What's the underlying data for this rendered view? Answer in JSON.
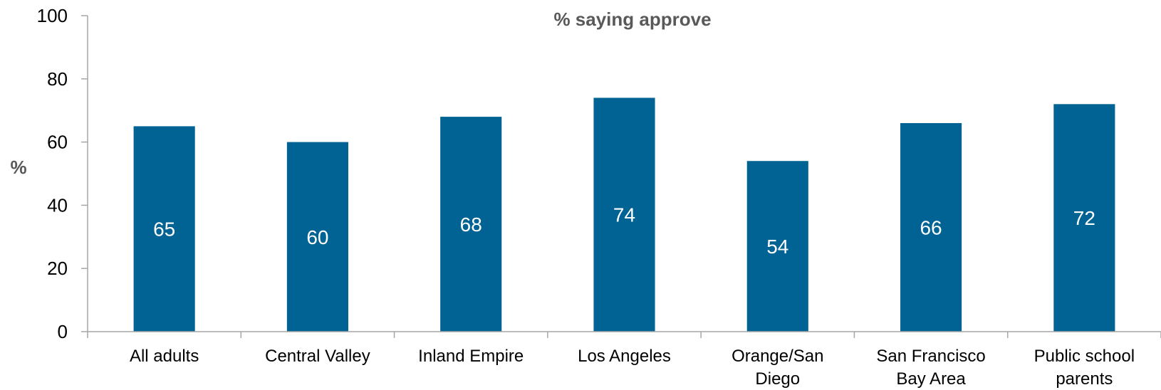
{
  "chart_data": {
    "type": "bar",
    "title": "% saying approve",
    "xlabel": "",
    "ylabel": "%",
    "categories": [
      [
        "All adults"
      ],
      [
        "Central Valley"
      ],
      [
        "Inland Empire"
      ],
      [
        "Los Angeles"
      ],
      [
        "Orange/San",
        "Diego"
      ],
      [
        "San Francisco",
        "Bay Area"
      ],
      [
        "Public school",
        "parents"
      ]
    ],
    "values": [
      65,
      60,
      68,
      74,
      54,
      66,
      72
    ],
    "data_labels": [
      "65",
      "60",
      "68",
      "74",
      "54",
      "66",
      "72"
    ],
    "y_ticks": [
      "0",
      "20",
      "40",
      "60",
      "80",
      "100"
    ],
    "ylim": [
      0,
      100
    ],
    "grid": false,
    "legend": "none",
    "colors": {
      "bar": "#006394",
      "axis": "#a6a6a6"
    }
  }
}
